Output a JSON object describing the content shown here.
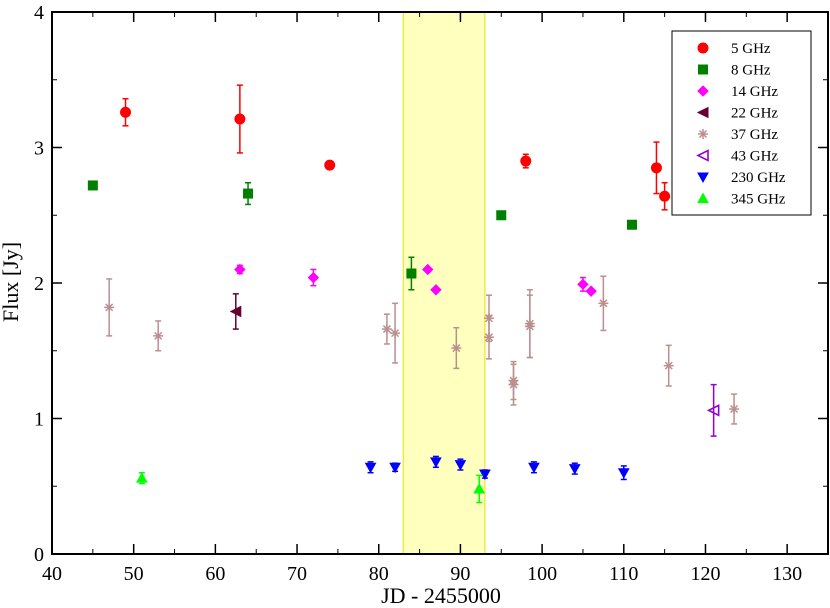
{
  "chart_data": {
    "type": "scatter",
    "xlabel": "JD - 2455000",
    "ylabel": "Flux [Jy]",
    "xlim": [
      40,
      135
    ],
    "ylim": [
      0,
      4
    ],
    "xticks": [
      40,
      50,
      60,
      70,
      80,
      90,
      100,
      110,
      120,
      130
    ],
    "yticks": [
      0,
      1,
      2,
      3,
      4
    ],
    "grid": false,
    "legend_position": "top-right",
    "shaded_region": {
      "x": [
        83,
        93
      ],
      "color": "#ffff88"
    },
    "series": [
      {
        "name": "5 GHz",
        "marker": "circle",
        "filled": true,
        "color": "#ff0000",
        "points": [
          {
            "x": 49,
            "y": 3.26,
            "err": 0.1
          },
          {
            "x": 63,
            "y": 3.21,
            "err": 0.25
          },
          {
            "x": 74,
            "y": 2.87,
            "err": 0
          },
          {
            "x": 98,
            "y": 2.9,
            "err": 0.05
          },
          {
            "x": 114,
            "y": 2.85,
            "err": 0.19
          },
          {
            "x": 115,
            "y": 2.64,
            "err": 0.1
          }
        ]
      },
      {
        "name": "8 GHz",
        "marker": "square",
        "filled": true,
        "color": "#008000",
        "points": [
          {
            "x": 45,
            "y": 2.72,
            "err": 0
          },
          {
            "x": 64,
            "y": 2.66,
            "err": 0.08
          },
          {
            "x": 84,
            "y": 2.07,
            "err": 0.12
          },
          {
            "x": 95,
            "y": 2.5,
            "err": 0
          },
          {
            "x": 111,
            "y": 2.43,
            "err": 0
          }
        ]
      },
      {
        "name": "14 GHz",
        "marker": "diamond",
        "filled": true,
        "color": "#ff00ff",
        "points": [
          {
            "x": 63,
            "y": 2.1,
            "err": 0.03
          },
          {
            "x": 72,
            "y": 2.04,
            "err": 0.06
          },
          {
            "x": 86,
            "y": 2.1,
            "err": 0
          },
          {
            "x": 87,
            "y": 1.95,
            "err": 0
          },
          {
            "x": 105,
            "y": 1.99,
            "err": 0.05
          },
          {
            "x": 106,
            "y": 1.94,
            "err": 0
          }
        ]
      },
      {
        "name": "22 GHz",
        "marker": "triangle-left",
        "filled": true,
        "color": "#660033",
        "points": [
          {
            "x": 62.5,
            "y": 1.79,
            "err": 0.13
          }
        ]
      },
      {
        "name": "37 GHz",
        "marker": "star",
        "filled": true,
        "color": "#bc8f8f",
        "points": [
          {
            "x": 47,
            "y": 1.82,
            "err": 0.21
          },
          {
            "x": 53,
            "y": 1.61,
            "err": 0.11
          },
          {
            "x": 81,
            "y": 1.66,
            "err": 0.11
          },
          {
            "x": 82,
            "y": 1.63,
            "err": 0.22
          },
          {
            "x": 89.5,
            "y": 1.52,
            "err": 0.15
          },
          {
            "x": 93.5,
            "y": 1.74,
            "err": 0.17
          },
          {
            "x": 93.5,
            "y": 1.6,
            "err": 0.16
          },
          {
            "x": 96.5,
            "y": 1.28,
            "err": 0.14
          },
          {
            "x": 96.5,
            "y": 1.25,
            "err": 0.15
          },
          {
            "x": 98.5,
            "y": 1.7,
            "err": 0.25
          },
          {
            "x": 98.5,
            "y": 1.68,
            "err": 0.23
          },
          {
            "x": 107.5,
            "y": 1.85,
            "err": 0.2
          },
          {
            "x": 115.5,
            "y": 1.39,
            "err": 0.15
          },
          {
            "x": 123.5,
            "y": 1.07,
            "err": 0.11
          }
        ]
      },
      {
        "name": "43 GHz",
        "marker": "triangle-left",
        "filled": false,
        "color": "#9400d3",
        "points": [
          {
            "x": 121,
            "y": 1.06,
            "err": 0.19
          }
        ]
      },
      {
        "name": "230 GHz",
        "marker": "triangle-down",
        "filled": true,
        "color": "#0000ff",
        "points": [
          {
            "x": 79,
            "y": 0.64,
            "err": 0.04
          },
          {
            "x": 82,
            "y": 0.64,
            "err": 0.03
          },
          {
            "x": 87,
            "y": 0.68,
            "err": 0.04
          },
          {
            "x": 90,
            "y": 0.66,
            "err": 0.04
          },
          {
            "x": 93,
            "y": 0.59,
            "err": 0.03
          },
          {
            "x": 99,
            "y": 0.64,
            "err": 0.04
          },
          {
            "x": 104,
            "y": 0.63,
            "err": 0.04
          },
          {
            "x": 110,
            "y": 0.6,
            "err": 0.05
          }
        ]
      },
      {
        "name": "345 GHz",
        "marker": "triangle-up",
        "filled": true,
        "color": "#00ff00",
        "points": [
          {
            "x": 51,
            "y": 0.56,
            "err": 0.04
          },
          {
            "x": 92.3,
            "y": 0.48,
            "err": 0.1
          }
        ]
      }
    ]
  }
}
